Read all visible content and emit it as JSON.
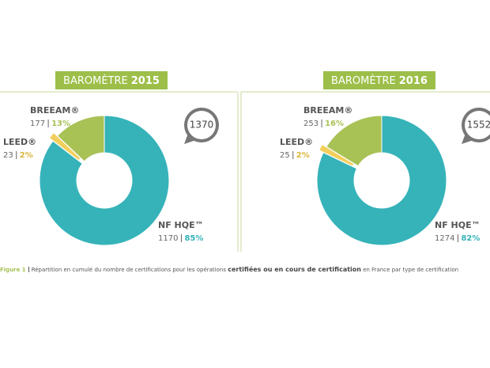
{
  "chart_data": [
    {
      "type": "pie",
      "title": "BAROMÈTRE",
      "title_year": "2015",
      "categories": [
        "NF HQE™",
        "LEED®",
        "BREEAM®"
      ],
      "values": [
        1170,
        23,
        177
      ],
      "percentages": [
        85,
        2,
        13
      ],
      "percentage_labels": [
        "85%",
        "2%",
        "13%"
      ],
      "colors": [
        "#35b3b9",
        "#f2cf5c",
        "#a8c256"
      ],
      "label_colors": [
        "#35b3b9",
        "#d9b73a",
        "#a8c256"
      ],
      "total": 1370
    },
    {
      "type": "pie",
      "title": "BAROMÈTRE",
      "title_year": "2016",
      "categories": [
        "NF HQE™",
        "LEED®",
        "BREEAM®"
      ],
      "values": [
        1274,
        25,
        253
      ],
      "percentages": [
        82,
        2,
        16
      ],
      "percentage_labels": [
        "82%",
        "2%",
        "16%"
      ],
      "colors": [
        "#35b3b9",
        "#f2cf5c",
        "#a8c256"
      ],
      "label_colors": [
        "#35b3b9",
        "#d9b73a",
        "#a8c256"
      ],
      "total": 1552
    }
  ],
  "caption": {
    "label": "Figure 1",
    "text": "Répartition en cumulé du nombre de certifications pour les opérations",
    "emphasis": "certifiées ou en cours de certification",
    "text_end": "en France par type de certification"
  }
}
